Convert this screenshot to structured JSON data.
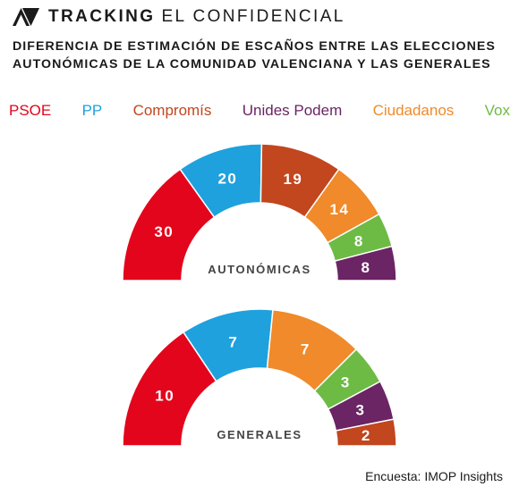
{
  "header": {
    "brand_bold": "TRACKING",
    "brand_regular": "EL CONFIDENCIAL"
  },
  "title": {
    "line1": "DIFERENCIA DE ESTIMACIÓN DE ESCAÑOS ENTRE LAS ELECCIONES",
    "line2": "AUTONÓMICAS DE LA COMUNIDAD VALENCIANA Y LAS GENERALES"
  },
  "legend": [
    {
      "label": "PSOE",
      "color": "#e3051b"
    },
    {
      "label": "PP",
      "color": "#1fa1de"
    },
    {
      "label": "Compromís",
      "color": "#c2461e"
    },
    {
      "label": "Unides Podem",
      "color": "#6b2464"
    },
    {
      "label": "Ciudadanos",
      "color": "#f08a2a"
    },
    {
      "label": "Vox",
      "color": "#6dbb45"
    }
  ],
  "chart_data": [
    {
      "type": "pie",
      "title": "AUTONÓMICAS",
      "categories": [
        "PSOE",
        "PP",
        "Compromís",
        "Ciudadanos",
        "Vox",
        "Unides Podem"
      ],
      "values": [
        30,
        20,
        19,
        14,
        8,
        8
      ],
      "colors": [
        "#e3051b",
        "#1fa1de",
        "#c2461e",
        "#f08a2a",
        "#6dbb45",
        "#6b2464"
      ]
    },
    {
      "type": "pie",
      "title": "GENERALES",
      "categories": [
        "PSOE",
        "PP",
        "Ciudadanos",
        "Vox",
        "Unides Podem",
        "Compromís"
      ],
      "values": [
        10,
        7,
        7,
        3,
        3,
        2
      ],
      "colors": [
        "#e3051b",
        "#1fa1de",
        "#f08a2a",
        "#6dbb45",
        "#6b2464",
        "#c2461e"
      ]
    }
  ],
  "source": "Encuesta: IMOP Insights"
}
